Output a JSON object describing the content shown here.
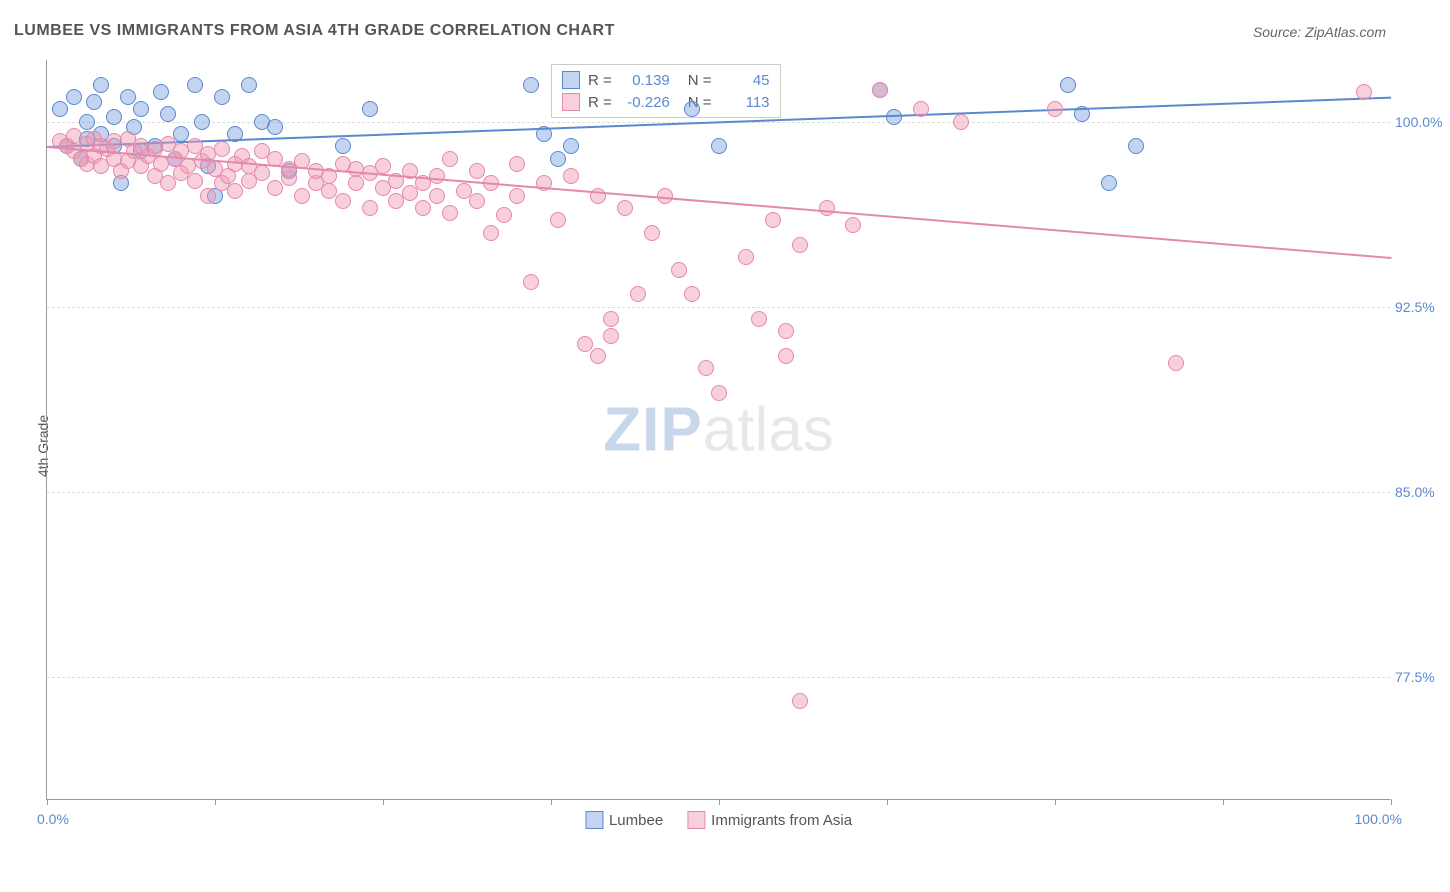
{
  "title": "LUMBEE VS IMMIGRANTS FROM ASIA 4TH GRADE CORRELATION CHART",
  "source_label": "Source: ZipAtlas.com",
  "y_axis_label": "4th Grade",
  "watermark": {
    "part1": "ZIP",
    "part2": "atlas"
  },
  "chart": {
    "type": "scatter",
    "background": "#ffffff",
    "xlim": [
      0,
      100
    ],
    "ylim": [
      72.5,
      102.5
    ],
    "x_tick_positions": [
      0,
      12.5,
      25,
      37.5,
      50,
      62.5,
      75,
      87.5,
      100
    ],
    "x_labels": {
      "min": "0.0%",
      "max": "100.0%"
    },
    "y_gridlines": [
      77.5,
      85.0,
      92.5,
      100.0
    ],
    "y_tick_labels": [
      "77.5%",
      "85.0%",
      "92.5%",
      "100.0%"
    ],
    "grid_color": "#dddddd",
    "axis_color": "#999999",
    "label_color": "#5b89d1",
    "series": [
      {
        "name": "Lumbee",
        "color_fill": "rgba(120,160,220,0.45)",
        "color_stroke": "#5b89d1",
        "trend": {
          "slope": 0.02,
          "intercept": 99.0,
          "r": 0.139,
          "n": 45
        },
        "points": [
          [
            1,
            100.5
          ],
          [
            1.5,
            99
          ],
          [
            2,
            101
          ],
          [
            2.5,
            98.5
          ],
          [
            3,
            100
          ],
          [
            3,
            99.3
          ],
          [
            3.5,
            100.8
          ],
          [
            4,
            99.5
          ],
          [
            4,
            101.5
          ],
          [
            5,
            99
          ],
          [
            5,
            100.2
          ],
          [
            5.5,
            97.5
          ],
          [
            6,
            101
          ],
          [
            6.5,
            99.8
          ],
          [
            7,
            100.5
          ],
          [
            7,
            98.8
          ],
          [
            8,
            99
          ],
          [
            8.5,
            101.2
          ],
          [
            9,
            100.3
          ],
          [
            9.5,
            98.5
          ],
          [
            10,
            99.5
          ],
          [
            11,
            101.5
          ],
          [
            11.5,
            100
          ],
          [
            12,
            98.2
          ],
          [
            12.5,
            97
          ],
          [
            13,
            101
          ],
          [
            14,
            99.5
          ],
          [
            15,
            101.5
          ],
          [
            16,
            100
          ],
          [
            17,
            99.8
          ],
          [
            18,
            98
          ],
          [
            22,
            99
          ],
          [
            24,
            100.5
          ],
          [
            36,
            101.5
          ],
          [
            37,
            99.5
          ],
          [
            38,
            98.5
          ],
          [
            39,
            99
          ],
          [
            48,
            100.5
          ],
          [
            50,
            99
          ],
          [
            62,
            101.3
          ],
          [
            63,
            100.2
          ],
          [
            76,
            101.5
          ],
          [
            77,
            100.3
          ],
          [
            79,
            97.5
          ],
          [
            81,
            99
          ]
        ]
      },
      {
        "name": "Immigrants from Asia",
        "color_fill": "rgba(240,150,180,0.45)",
        "color_stroke": "#e589a8",
        "trend": {
          "slope": -0.045,
          "intercept": 99.0,
          "r": -0.226,
          "n": 113
        },
        "points": [
          [
            1,
            99.2
          ],
          [
            1.5,
            99
          ],
          [
            2,
            98.8
          ],
          [
            2,
            99.4
          ],
          [
            2.5,
            98.5
          ],
          [
            3,
            99.1
          ],
          [
            3,
            98.3
          ],
          [
            3.5,
            99.3
          ],
          [
            3.5,
            98.6
          ],
          [
            4,
            99
          ],
          [
            4,
            98.2
          ],
          [
            4.5,
            98.9
          ],
          [
            5,
            98.5
          ],
          [
            5,
            99.2
          ],
          [
            5.5,
            98
          ],
          [
            6,
            99.3
          ],
          [
            6,
            98.4
          ],
          [
            6.5,
            98.8
          ],
          [
            7,
            98.2
          ],
          [
            7,
            99
          ],
          [
            7.5,
            98.6
          ],
          [
            8,
            97.8
          ],
          [
            8,
            98.9
          ],
          [
            8.5,
            98.3
          ],
          [
            9,
            99.1
          ],
          [
            9,
            97.5
          ],
          [
            9.5,
            98.5
          ],
          [
            10,
            98.8
          ],
          [
            10,
            97.9
          ],
          [
            10.5,
            98.2
          ],
          [
            11,
            99
          ],
          [
            11,
            97.6
          ],
          [
            11.5,
            98.4
          ],
          [
            12,
            97
          ],
          [
            12,
            98.7
          ],
          [
            12.5,
            98.1
          ],
          [
            13,
            97.5
          ],
          [
            13,
            98.9
          ],
          [
            13.5,
            97.8
          ],
          [
            14,
            98.3
          ],
          [
            14,
            97.2
          ],
          [
            14.5,
            98.6
          ],
          [
            15,
            97.6
          ],
          [
            15,
            98.2
          ],
          [
            16,
            97.9
          ],
          [
            16,
            98.8
          ],
          [
            17,
            97.3
          ],
          [
            17,
            98.5
          ],
          [
            18,
            97.7
          ],
          [
            18,
            98.1
          ],
          [
            19,
            97
          ],
          [
            19,
            98.4
          ],
          [
            20,
            97.5
          ],
          [
            20,
            98
          ],
          [
            21,
            97.8
          ],
          [
            21,
            97.2
          ],
          [
            22,
            98.3
          ],
          [
            22,
            96.8
          ],
          [
            23,
            97.5
          ],
          [
            23,
            98.1
          ],
          [
            24,
            96.5
          ],
          [
            24,
            97.9
          ],
          [
            25,
            97.3
          ],
          [
            25,
            98.2
          ],
          [
            26,
            96.8
          ],
          [
            26,
            97.6
          ],
          [
            27,
            98
          ],
          [
            27,
            97.1
          ],
          [
            28,
            97.5
          ],
          [
            28,
            96.5
          ],
          [
            29,
            97.8
          ],
          [
            29,
            97
          ],
          [
            30,
            96.3
          ],
          [
            30,
            98.5
          ],
          [
            31,
            97.2
          ],
          [
            32,
            96.8
          ],
          [
            32,
            98
          ],
          [
            33,
            97.5
          ],
          [
            33,
            95.5
          ],
          [
            34,
            96.2
          ],
          [
            35,
            97
          ],
          [
            35,
            98.3
          ],
          [
            36,
            93.5
          ],
          [
            37,
            97.5
          ],
          [
            38,
            96
          ],
          [
            39,
            97.8
          ],
          [
            40,
            91
          ],
          [
            41,
            90.5
          ],
          [
            41,
            97
          ],
          [
            42,
            92
          ],
          [
            42,
            91.3
          ],
          [
            43,
            96.5
          ],
          [
            44,
            93
          ],
          [
            45,
            95.5
          ],
          [
            46,
            97
          ],
          [
            47,
            94
          ],
          [
            48,
            93
          ],
          [
            49,
            90
          ],
          [
            50,
            89
          ],
          [
            52,
            94.5
          ],
          [
            53,
            92
          ],
          [
            54,
            96
          ],
          [
            55,
            90.5
          ],
          [
            55,
            91.5
          ],
          [
            56,
            95
          ],
          [
            56,
            76.5
          ],
          [
            58,
            96.5
          ],
          [
            60,
            95.8
          ],
          [
            62,
            101.3
          ],
          [
            65,
            100.5
          ],
          [
            68,
            100
          ],
          [
            75,
            100.5
          ],
          [
            84,
            90.2
          ],
          [
            98,
            101.2
          ]
        ]
      }
    ]
  },
  "legend_top": {
    "rows": [
      {
        "swatch_fill": "rgba(120,160,220,0.45)",
        "swatch_stroke": "#5b89d1",
        "r_label": "R =",
        "r_value": "0.139",
        "n_label": "N =",
        "n_value": "45"
      },
      {
        "swatch_fill": "rgba(240,150,180,0.45)",
        "swatch_stroke": "#e589a8",
        "r_label": "R =",
        "r_value": "-0.226",
        "n_label": "N =",
        "n_value": "113"
      }
    ]
  },
  "legend_bottom": [
    {
      "swatch_fill": "rgba(120,160,220,0.45)",
      "swatch_stroke": "#5b89d1",
      "label": "Lumbee"
    },
    {
      "swatch_fill": "rgba(240,150,180,0.45)",
      "swatch_stroke": "#e589a8",
      "label": "Immigrants from Asia"
    }
  ]
}
